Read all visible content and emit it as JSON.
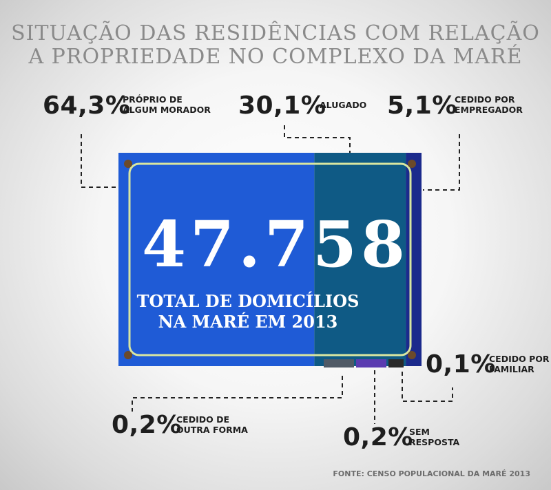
{
  "title_line1": "Situação das residências com relação",
  "title_line2": "a propriedade no Complexo da Maré",
  "total": {
    "value": "47.758",
    "caption_line1": "TOTAL DE DOMICÍLIOS",
    "caption_line2": "NA MARÉ EM 2013"
  },
  "source": "FONTE: CENSO POPULACIONAL DA MARÉ 2013",
  "colors": {
    "proprio": "#1f5bd6",
    "alugado": "#0f5a85",
    "cedido_empregador": "#1b2a8c",
    "cedido_outra_forma": "#505a66",
    "sem_resposta": "#5a3bb0",
    "cedido_familiar": "#2a2a2a",
    "plate_stripe": "#d9e6a0"
  },
  "chart_data": {
    "type": "bar",
    "title": "Situação das residências com relação a propriedade no Complexo da Maré",
    "unit": "%",
    "categories": [
      "Próprio de algum morador",
      "Alugado",
      "Cedido por empregador",
      "Cedido de outra forma",
      "Sem resposta",
      "Cedido por familiar"
    ],
    "values": [
      64.3,
      30.1,
      5.1,
      0.2,
      0.2,
      0.1
    ],
    "total_households": 47758
  },
  "labels": {
    "proprio": {
      "pct": "64,3%",
      "line1": "PRÓPRIO DE",
      "line2": "ALGUM MORADOR"
    },
    "alugado": {
      "pct": "30,1%",
      "line1": "ALUGADO",
      "line2": ""
    },
    "empregador": {
      "pct": "5,1%",
      "line1": "CEDIDO POR",
      "line2": "EMPREGADOR"
    },
    "outra": {
      "pct": "0,2%",
      "line1": "CEDIDO DE",
      "line2": "OUTRA FORMA"
    },
    "sem": {
      "pct": "0,2%",
      "line1": "SEM",
      "line2": "RESPOSTA"
    },
    "familiar": {
      "pct": "0,1%",
      "line1": "CEDIDO POR",
      "line2": "FAMILIAR"
    }
  }
}
